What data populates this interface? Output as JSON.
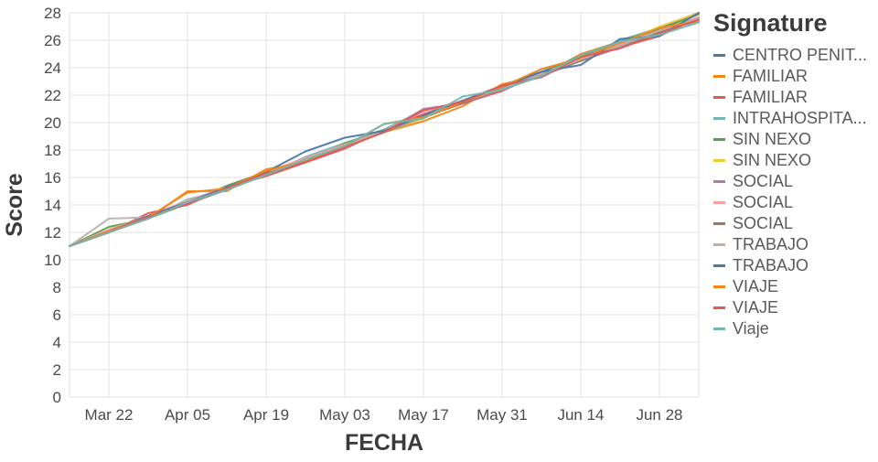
{
  "legend": {
    "title": "Signature"
  },
  "chart_data": {
    "type": "line",
    "title": "",
    "xlabel": "FECHA",
    "ylabel": "Score",
    "ylim": [
      0,
      28
    ],
    "y_tick_step": 2,
    "xlim": [
      0,
      112
    ],
    "x_days": [
      0,
      7,
      14,
      21,
      28,
      35,
      42,
      49,
      56,
      63,
      70,
      77,
      84,
      91,
      98,
      105,
      112
    ],
    "x_ticks": [
      {
        "day": 7,
        "label": "Mar 22"
      },
      {
        "day": 21,
        "label": "Apr 05"
      },
      {
        "day": 35,
        "label": "Apr 19"
      },
      {
        "day": 49,
        "label": "May 03"
      },
      {
        "day": 63,
        "label": "May 17"
      },
      {
        "day": 77,
        "label": "May 31"
      },
      {
        "day": 91,
        "label": "Jun 14"
      },
      {
        "day": 105,
        "label": "Jun 28"
      }
    ],
    "legend_position": "right",
    "grid": true,
    "series": [
      {
        "name": "CENTRO PENIT...",
        "color": "#4c78a8",
        "values": [
          11,
          12.1,
          13.1,
          14.2,
          15.2,
          16.3,
          17.4,
          18.4,
          19.5,
          20.6,
          21.6,
          22.7,
          23.7,
          24.8,
          25.9,
          26.9,
          28
        ]
      },
      {
        "name": "FAMILIAR",
        "color": "#f58518",
        "values": [
          11,
          12,
          13,
          15,
          15,
          16.6,
          17.1,
          18.3,
          19.3,
          20.1,
          21.2,
          22.8,
          23.4,
          25,
          25.9,
          26.6,
          27.6
        ]
      },
      {
        "name": "FAMILIAR",
        "color": "#e45756",
        "values": [
          11,
          12,
          13.4,
          14,
          15.3,
          16.1,
          17.1,
          18.1,
          19.4,
          20.6,
          21.4,
          22.3,
          23.6,
          24.5,
          25.5,
          26.3,
          27.7
        ]
      },
      {
        "name": "INTRAHOSPITA...",
        "color": "#72b7b2",
        "values": [
          11,
          12.1,
          13,
          14.4,
          15.1,
          16.2,
          17.5,
          18.5,
          19.5,
          20.9,
          21.5,
          22.6,
          23.9,
          24.6,
          26,
          26.9,
          27.3
        ]
      },
      {
        "name": "SIN NEXO",
        "color": "#54a24b",
        "values": [
          11,
          12.4,
          13,
          14.1,
          15.4,
          16.4,
          17.1,
          18.5,
          19.4,
          20.5,
          21.6,
          22.5,
          23.6,
          24.9,
          25.9,
          26.8,
          27.9
        ]
      },
      {
        "name": "SIN NEXO",
        "color": "#eeca3b",
        "values": [
          11,
          12.1,
          13.2,
          14.2,
          15.1,
          16.2,
          17.3,
          18.2,
          19.3,
          20.3,
          21.5,
          22.5,
          23.5,
          24.7,
          25.7,
          27,
          28
        ]
      },
      {
        "name": "SOCIAL",
        "color": "#b279a2",
        "values": [
          11,
          12,
          13.1,
          14.1,
          15.2,
          16.2,
          17.3,
          18.3,
          19.3,
          21,
          21.4,
          22.4,
          23.4,
          24.5,
          25.5,
          26.6,
          27.6
        ]
      },
      {
        "name": "SOCIAL",
        "color": "#ff9da6",
        "values": [
          11,
          12.2,
          13.2,
          14.3,
          15.3,
          16.4,
          17.4,
          18.4,
          19.4,
          20.8,
          21.6,
          22.5,
          23.6,
          24.6,
          25.7,
          26.7,
          27.7
        ]
      },
      {
        "name": "SOCIAL",
        "color": "#9d755d",
        "values": [
          11,
          12,
          13.1,
          14.1,
          15.1,
          16.2,
          17.2,
          18.3,
          19.3,
          20.4,
          21.4,
          22.5,
          23.5,
          24.5,
          25.6,
          26.6,
          27.6
        ]
      },
      {
        "name": "TRABAJO",
        "color": "#bab0ac",
        "values": [
          11,
          13,
          13.1,
          14.2,
          15.2,
          16.3,
          17.3,
          18.3,
          19.4,
          20.4,
          21.5,
          22.5,
          23.5,
          24.6,
          25.6,
          26.7,
          27.6
        ]
      },
      {
        "name": "TRABAJO",
        "color": "#4c78a8",
        "values": [
          11,
          12.1,
          13.2,
          14.2,
          15.3,
          16.4,
          17.9,
          18.9,
          19.4,
          20.5,
          21.6,
          22.6,
          23.7,
          24.2,
          26.1,
          26.3,
          28
        ]
      },
      {
        "name": "VIAJE",
        "color": "#f58518",
        "values": [
          11,
          12.1,
          13.1,
          14.9,
          15.2,
          16.5,
          17.2,
          18.3,
          19.9,
          20.4,
          21.5,
          22.6,
          23.9,
          24.7,
          25.8,
          26.9,
          27.4
        ]
      },
      {
        "name": "VIAJE",
        "color": "#e45756",
        "values": [
          11,
          12,
          13.1,
          14.1,
          15.2,
          16.3,
          17.1,
          18.2,
          19.3,
          20.9,
          21.5,
          22.7,
          23.3,
          24.8,
          25.4,
          26.5,
          27.5
        ]
      },
      {
        "name": "Viaje",
        "color": "#72b7b2",
        "values": [
          11,
          12,
          13,
          14.2,
          15.1,
          16.2,
          17.3,
          18.3,
          19.9,
          20.3,
          21.9,
          22.4,
          23.4,
          24.9,
          25.9,
          26.4,
          27.3
        ]
      }
    ]
  }
}
